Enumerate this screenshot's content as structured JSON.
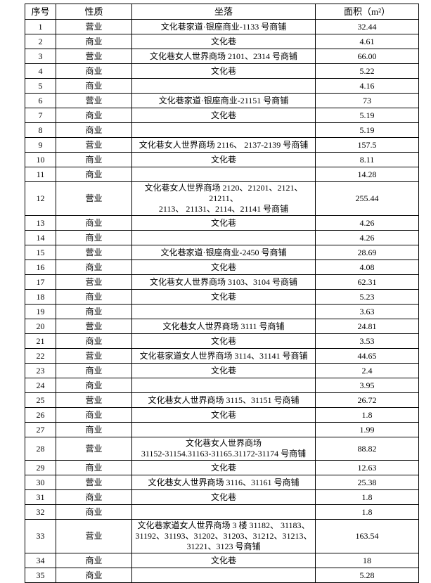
{
  "table": {
    "columns": [
      {
        "key": "index",
        "label": "序号"
      },
      {
        "key": "nature",
        "label": "性质"
      },
      {
        "key": "location",
        "label": "坐落"
      },
      {
        "key": "area",
        "label": "面积（m²）"
      }
    ],
    "rows": [
      {
        "index": "1",
        "nature": "营业",
        "location": "文化巷家道·银座商业-1133 号商铺",
        "area": "32.44"
      },
      {
        "index": "2",
        "nature": "商业",
        "location": "文化巷",
        "area": "4.61"
      },
      {
        "index": "3",
        "nature": "营业",
        "location": "文化巷女人世界商场 2101、2314 号商铺",
        "area": "66.00"
      },
      {
        "index": "4",
        "nature": "商业",
        "location": "文化巷",
        "area": "5.22"
      },
      {
        "index": "5",
        "nature": "商业",
        "location": "",
        "area": "4.16"
      },
      {
        "index": "6",
        "nature": "营业",
        "location": "文化巷家道·银座商业-21151 号商铺",
        "area": "73"
      },
      {
        "index": "7",
        "nature": "商业",
        "location": "文化巷",
        "area": "5.19"
      },
      {
        "index": "8",
        "nature": "商业",
        "location": "",
        "area": "5.19"
      },
      {
        "index": "9",
        "nature": "营业",
        "location": "文化巷女人世界商场 2116、 2137-2139 号商铺",
        "area": "157.5"
      },
      {
        "index": "10",
        "nature": "商业",
        "location": "文化巷",
        "area": "8.11"
      },
      {
        "index": "11",
        "nature": "商业",
        "location": "",
        "area": "14.28"
      },
      {
        "index": "12",
        "nature": "营业",
        "location": "文化巷女人世界商场 2120、21201、2121、21211、\n2113、 21131、2114、21141 号商铺",
        "area": "255.44"
      },
      {
        "index": "13",
        "nature": "商业",
        "location": "文化巷",
        "area": "4.26"
      },
      {
        "index": "14",
        "nature": "商业",
        "location": "",
        "area": "4.26"
      },
      {
        "index": "15",
        "nature": "营业",
        "location": "文化巷家道·银座商业-2450 号商铺",
        "area": "28.69"
      },
      {
        "index": "16",
        "nature": "商业",
        "location": "文化巷",
        "area": "4.08"
      },
      {
        "index": "17",
        "nature": "营业",
        "location": "文化巷女人世界商场 3103、3104 号商铺",
        "area": "62.31"
      },
      {
        "index": "18",
        "nature": "商业",
        "location": "文化巷",
        "area": "5.23"
      },
      {
        "index": "19",
        "nature": "商业",
        "location": "",
        "area": "3.63"
      },
      {
        "index": "20",
        "nature": "营业",
        "location": "文化巷女人世界商场 3111 号商铺",
        "area": "24.81"
      },
      {
        "index": "21",
        "nature": "商业",
        "location": "文化巷",
        "area": "3.53"
      },
      {
        "index": "22",
        "nature": "营业",
        "location": "文化巷家道女人世界商场 3114、31141 号商铺",
        "area": "44.65"
      },
      {
        "index": "23",
        "nature": "商业",
        "location": "文化巷",
        "area": "2.4"
      },
      {
        "index": "24",
        "nature": "商业",
        "location": "",
        "area": "3.95"
      },
      {
        "index": "25",
        "nature": "营业",
        "location": "文化巷女人世界商场 3115、31151 号商铺",
        "area": "26.72"
      },
      {
        "index": "26",
        "nature": "商业",
        "location": "文化巷",
        "area": "1.8"
      },
      {
        "index": "27",
        "nature": "商业",
        "location": "",
        "area": "1.99"
      },
      {
        "index": "28",
        "nature": "营业",
        "location": "文化巷女人世界商场\n31152-31154.31163-31165.31172-31174 号商铺",
        "area": "88.82"
      },
      {
        "index": "29",
        "nature": "商业",
        "location": "文化巷",
        "area": "12.63"
      },
      {
        "index": "30",
        "nature": "营业",
        "location": "文化巷女人世界商场 3116、31161 号商铺",
        "area": "25.38"
      },
      {
        "index": "31",
        "nature": "商业",
        "location": "文化巷",
        "area": "1.8"
      },
      {
        "index": "32",
        "nature": "商业",
        "location": "",
        "area": "1.8"
      },
      {
        "index": "33",
        "nature": "营业",
        "location": "文化巷家道女人世界商场 3 楼 31182、 31183、\n31192、31193、31202、31203、31212、31213、\n31221、3123 号商铺",
        "area": "163.54"
      },
      {
        "index": "34",
        "nature": "商业",
        "location": "文化巷",
        "area": "18"
      },
      {
        "index": "35",
        "nature": "商业",
        "location": "",
        "area": "5.28"
      }
    ]
  }
}
